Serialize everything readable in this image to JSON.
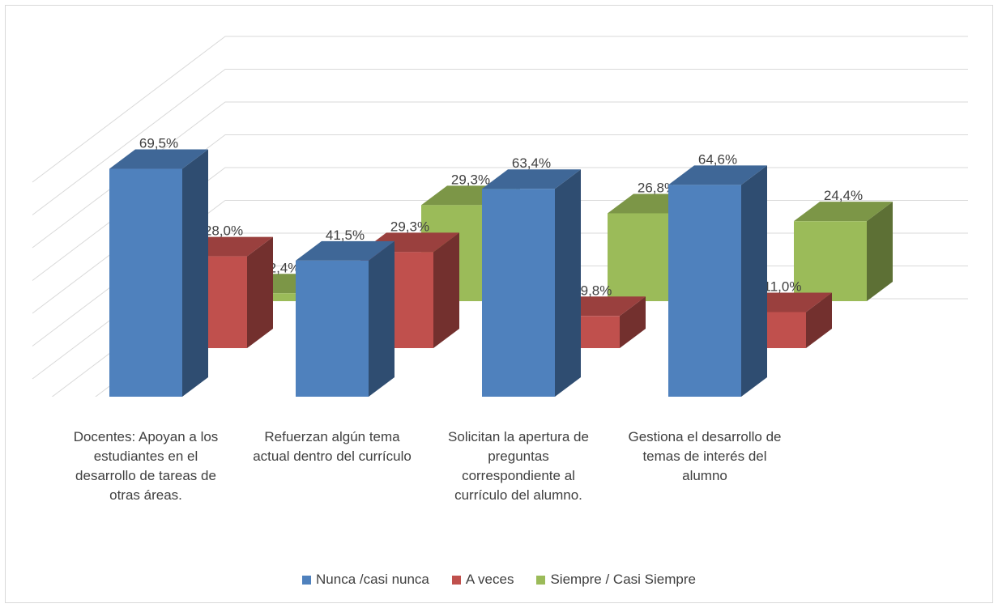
{
  "chart_data": {
    "type": "bar3d",
    "categories": [
      "Docentes: Apoyan a los estudiantes en el desarrollo de tareas de otras áreas.",
      "Refuerzan algún tema actual dentro del currículo",
      "Solicitan la apertura de preguntas correspondiente al currículo del alumno.",
      "Gestiona el desarrollo de temas de interés del alumno"
    ],
    "series": [
      {
        "name": "Nunca /casi nunca",
        "color": "#4f81bd",
        "values": [
          69.5,
          41.5,
          63.4,
          64.6
        ],
        "value_labels": [
          "69,5%",
          "41,5%",
          "63,4%",
          "64,6%"
        ]
      },
      {
        "name": "A veces",
        "color": "#c0504d",
        "values": [
          28.0,
          29.3,
          9.8,
          11.0
        ],
        "value_labels": [
          "28,0%",
          "29,3%",
          "9,8%",
          "11,0%"
        ]
      },
      {
        "name": "Siempre / Casi Siempre",
        "color": "#9bbb59",
        "values": [
          2.4,
          29.3,
          26.8,
          24.4
        ],
        "value_labels": [
          "2,4%",
          "29,3%",
          "26,8%",
          "24,4%"
        ]
      }
    ],
    "ylim": [
      0,
      80
    ],
    "yticks": [
      0,
      10,
      20,
      30,
      40,
      50,
      60,
      70,
      80
    ],
    "grid": true,
    "legend": "bottom"
  }
}
